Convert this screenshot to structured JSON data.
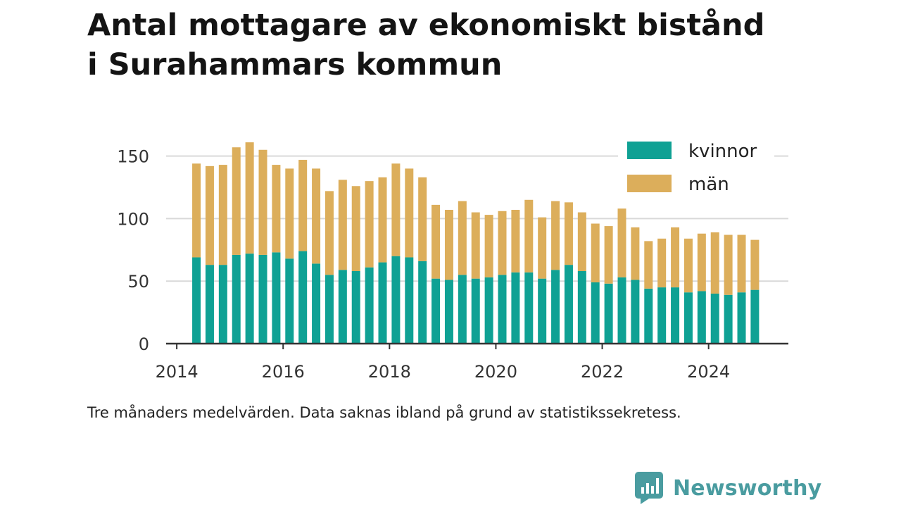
{
  "title_line1": "Antal mottagare av ekonomiskt bistånd",
  "title_line2": "i Surahammars kommun",
  "caption": "Tre månaders medelvärden. Data saknas ibland på grund av statistikssekretess.",
  "brand": {
    "name": "Newsworthy",
    "icon": "newsworthy-logo-icon",
    "color": "#4a9ca0"
  },
  "colors": {
    "kvinnor": "#0fa194",
    "man": "#dcae5b",
    "grid": "#d9d9d9",
    "axis": "#333333"
  },
  "chart_data": {
    "type": "bar",
    "stacked": true,
    "xlim": [
      2013.8,
      2025.5
    ],
    "ylim": [
      0,
      165
    ],
    "x_ticks": [
      2014,
      2016,
      2018,
      2020,
      2022,
      2024
    ],
    "y_ticks": [
      0,
      50,
      100,
      150
    ],
    "grid": "horizontal",
    "legend_position": "top-right",
    "x": [
      2014.37,
      2014.62,
      2014.87,
      2015.12,
      2015.37,
      2015.62,
      2015.87,
      2016.12,
      2016.37,
      2016.62,
      2016.87,
      2017.12,
      2017.37,
      2017.62,
      2017.87,
      2018.12,
      2018.37,
      2018.62,
      2018.87,
      2019.12,
      2019.37,
      2019.62,
      2019.87,
      2020.12,
      2020.37,
      2020.62,
      2020.87,
      2021.12,
      2021.37,
      2021.62,
      2021.87,
      2022.12,
      2022.37,
      2022.62,
      2022.87,
      2023.12,
      2023.37,
      2023.62,
      2023.87,
      2024.12,
      2024.37,
      2024.62,
      2024.87
    ],
    "series": [
      {
        "name": "kvinnor",
        "values": [
          69,
          63,
          63,
          71,
          72,
          71,
          73,
          68,
          74,
          64,
          55,
          59,
          58,
          61,
          65,
          70,
          69,
          66,
          52,
          51,
          55,
          52,
          53,
          55,
          57,
          57,
          52,
          59,
          63,
          58,
          49,
          48,
          53,
          51,
          44,
          45,
          45,
          41,
          42,
          40,
          39,
          41,
          43
        ]
      },
      {
        "name": "män",
        "values": [
          75,
          79,
          80,
          86,
          89,
          84,
          70,
          72,
          73,
          76,
          67,
          72,
          68,
          69,
          68,
          74,
          71,
          67,
          59,
          56,
          59,
          53,
          50,
          51,
          50,
          58,
          49,
          55,
          50,
          47,
          47,
          46,
          55,
          42,
          38,
          39,
          48,
          43,
          46,
          49,
          48,
          46,
          40
        ]
      }
    ]
  }
}
